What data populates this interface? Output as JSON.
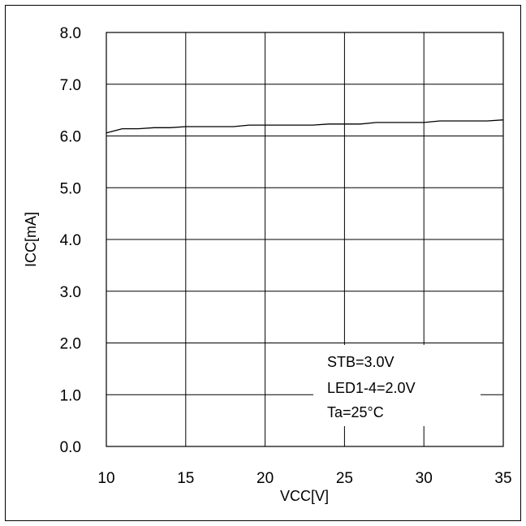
{
  "chart_data": {
    "type": "line",
    "title": "",
    "xlabel": "VCC[V]",
    "ylabel": "ICC[mA]",
    "xlim": [
      10,
      35
    ],
    "ylim": [
      0,
      8
    ],
    "x_ticks": [
      "10",
      "15",
      "20",
      "25",
      "30",
      "35"
    ],
    "y_ticks": [
      "0.0",
      "1.0",
      "2.0",
      "3.0",
      "4.0",
      "5.0",
      "6.0",
      "7.0",
      "8.0"
    ],
    "grid": true,
    "legend": "none",
    "annotations": [
      "STB=3.0V",
      "LED1-4=2.0V",
      "Ta=25°C"
    ],
    "series": [
      {
        "x": [
          10,
          11,
          12,
          13,
          14,
          15,
          16,
          17,
          18,
          19,
          20,
          21,
          22,
          23,
          24,
          25,
          26,
          27,
          28,
          29,
          30,
          31,
          32,
          33,
          34,
          35
        ],
        "values": [
          6.06,
          6.14,
          6.14,
          6.16,
          6.16,
          6.18,
          6.18,
          6.18,
          6.18,
          6.21,
          6.21,
          6.21,
          6.21,
          6.21,
          6.23,
          6.23,
          6.23,
          6.26,
          6.26,
          6.26,
          6.26,
          6.29,
          6.29,
          6.29,
          6.29,
          6.31
        ]
      }
    ]
  }
}
